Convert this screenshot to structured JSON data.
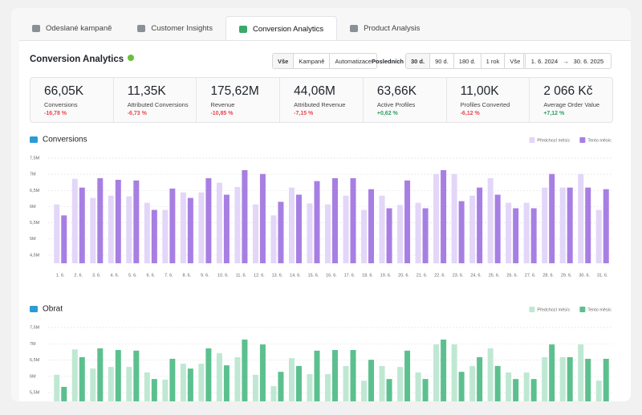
{
  "tabs": [
    "Odeslané kampaně",
    "Customer Insights",
    "Conversion Analytics",
    "Product Analysis"
  ],
  "header": {
    "title": "Conversion Analytics",
    "filter": [
      "Vše",
      "Kampaně",
      "Automatizace"
    ],
    "period_label": "Posledních",
    "periods": [
      "30 d.",
      "90 d.",
      "180 d.",
      "1 rok",
      "Vše"
    ],
    "date_from": "1. 6. 2024",
    "date_to": "30. 6. 2025"
  },
  "kpis": [
    {
      "value": "66,05K",
      "label": "Conversions",
      "change": "-16,78 %",
      "color": "#e5484d"
    },
    {
      "value": "11,35K",
      "label": "Attributed Conversions",
      "change": "-6,73 %",
      "color": "#e5484d"
    },
    {
      "value": "175,62M",
      "label": "Revenue",
      "change": "-10,85 %",
      "color": "#e5484d"
    },
    {
      "value": "44,06M",
      "label": "Attributed Revenue",
      "change": "-7,15 %",
      "color": "#e5484d"
    },
    {
      "value": "63,66K",
      "label": "Active Profiles",
      "change": "+0,62 %",
      "color": "#2f9e63"
    },
    {
      "value": "11,00K",
      "label": "Profiles Converted",
      "change": "-6,12 %",
      "color": "#e5484d"
    },
    {
      "value": "2 066 Kč",
      "label": "Average Order Value",
      "change": "+7,12 %",
      "color": "#2f9e63"
    }
  ],
  "chart_data": [
    {
      "type": "bar",
      "title": "Conversions",
      "categories": [
        "1. 6.",
        "2. 6.",
        "3. 6.",
        "4. 6.",
        "5. 6.",
        "6. 6.",
        "7. 6.",
        "8. 6.",
        "9. 6.",
        "10. 6.",
        "11. 6.",
        "12. 6.",
        "13. 6.",
        "14. 6.",
        "15. 6.",
        "16. 6.",
        "17. 6.",
        "18. 6.",
        "19. 6.",
        "20. 6.",
        "21. 6.",
        "22. 6.",
        "23. 6.",
        "24. 6.",
        "25. 6.",
        "26. 6.",
        "27. 6.",
        "28. 6.",
        "29. 6.",
        "30. 6.",
        "31. 6."
      ],
      "series": [
        {
          "name": "Předchozí měsíc",
          "color": "#e3d6f8",
          "values": [
            6.07,
            6.86,
            6.27,
            6.34,
            6.32,
            6.12,
            5.9,
            6.44,
            6.44,
            6.74,
            6.61,
            6.07,
            5.73,
            6.59,
            6.1,
            6.07,
            6.34,
            5.9,
            6.34,
            6.05,
            6.12,
            7.01,
            7.01,
            6.34,
            6.88,
            6.12,
            6.12,
            6.59,
            6.59,
            7.01,
            5.9
          ]
        },
        {
          "name": "Tento měsíc",
          "color": "#a77fe2",
          "values": [
            5.73,
            6.59,
            6.88,
            6.83,
            6.81,
            5.9,
            6.56,
            6.27,
            6.88,
            6.37,
            7.13,
            7.01,
            6.15,
            6.37,
            6.79,
            6.88,
            6.88,
            6.54,
            5.95,
            6.81,
            5.95,
            7.13,
            6.17,
            6.59,
            6.37,
            5.95,
            5.95,
            7.01,
            6.59,
            6.59,
            6.54
          ]
        }
      ],
      "ylim": [
        4.25,
        7.5
      ],
      "yticks": [
        {
          "value": 4.5,
          "label": "4,5M"
        },
        {
          "value": 5,
          "label": "5M"
        },
        {
          "value": 5.5,
          "label": "5,5M"
        },
        {
          "value": 6,
          "label": "6M"
        },
        {
          "value": 6.5,
          "label": "6,5M"
        },
        {
          "value": 7,
          "label": "7M"
        },
        {
          "value": 7.5,
          "label": "7,5M"
        }
      ],
      "grid": true
    },
    {
      "type": "bar",
      "title": "Obrat",
      "series": [
        {
          "name": "Předchozí měsíc",
          "color": "#bfe8d3",
          "values": [
            6.05,
            6.83,
            6.24,
            6.29,
            6.29,
            6.12,
            5.9,
            6.39,
            6.39,
            6.71,
            6.59,
            6.05,
            5.7,
            6.56,
            6.07,
            6.07,
            6.32,
            5.87,
            6.32,
            6.29,
            6.12,
            6.98,
            6.98,
            6.32,
            6.86,
            6.12,
            6.12,
            6.59,
            6.59,
            6.98,
            5.87
          ]
        },
        {
          "name": "Tento měsíc",
          "color": "#5cc08e",
          "values": [
            5.68,
            6.59,
            6.86,
            6.81,
            6.79,
            5.92,
            6.54,
            6.24,
            6.86,
            6.34,
            7.13,
            6.98,
            6.14,
            6.32,
            6.79,
            6.81,
            6.81,
            6.51,
            5.92,
            6.79,
            5.92,
            7.13,
            6.14,
            6.59,
            6.32,
            5.92,
            5.92,
            6.98,
            6.59,
            6.54,
            6.54
          ]
        }
      ],
      "ylim": [
        4.25,
        7.5
      ],
      "yticks": [
        {
          "value": 5.5,
          "label": "5,5M"
        },
        {
          "value": 6,
          "label": "6M"
        },
        {
          "value": 6.5,
          "label": "6,5M"
        },
        {
          "value": 7,
          "label": "7M"
        },
        {
          "value": 7.5,
          "label": "7,5M"
        }
      ],
      "grid": true
    }
  ]
}
